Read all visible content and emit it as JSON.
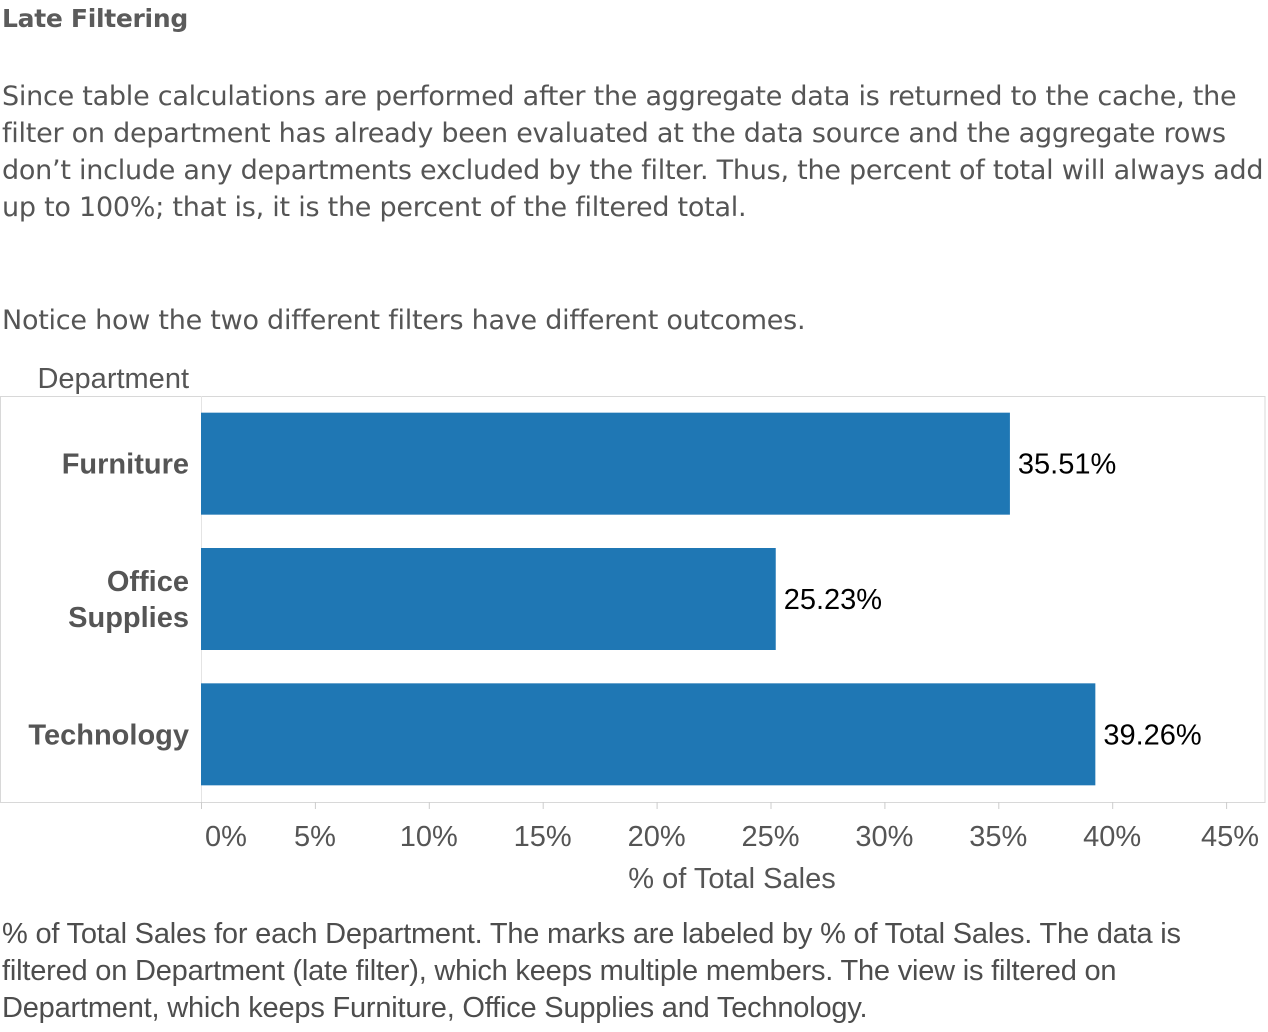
{
  "header": {
    "title": "Late Filtering"
  },
  "text": {
    "paragraph_1": "Since table calculations are performed after the aggregate data is returned to the cache, the filter on department has already been evaluated at the data source and the aggregate rows don’t include any departments excluded by the filter. Thus, the percent of total will always add up to 100%; that is, it is the percent of the filtered total.",
    "paragraph_2": "Notice how the two different filters have different outcomes."
  },
  "chart_data": {
    "type": "bar",
    "orientation": "horizontal",
    "row_header": "Department",
    "categories": [
      "Furniture",
      "Office Supplies",
      "Technology"
    ],
    "values": [
      35.51,
      25.23,
      39.26
    ],
    "value_labels": [
      "35.51%",
      "25.23%",
      "39.26%"
    ],
    "xlabel": "% of Total Sales",
    "xlim": [
      0,
      45
    ],
    "xticks": [
      "0%",
      "5%",
      "10%",
      "15%",
      "20%",
      "25%",
      "30%",
      "35%",
      "40%",
      "45%"
    ],
    "grid": false,
    "legend": "none",
    "bar_color": "#1f77b4"
  },
  "caption": {
    "text": "% of Total Sales for each Department.  The marks are labeled by % of Total Sales. The data is filtered on Department (late filter), which keeps multiple members. The view is filtered on Department, which keeps Furniture, Office Supplies and Technology."
  }
}
